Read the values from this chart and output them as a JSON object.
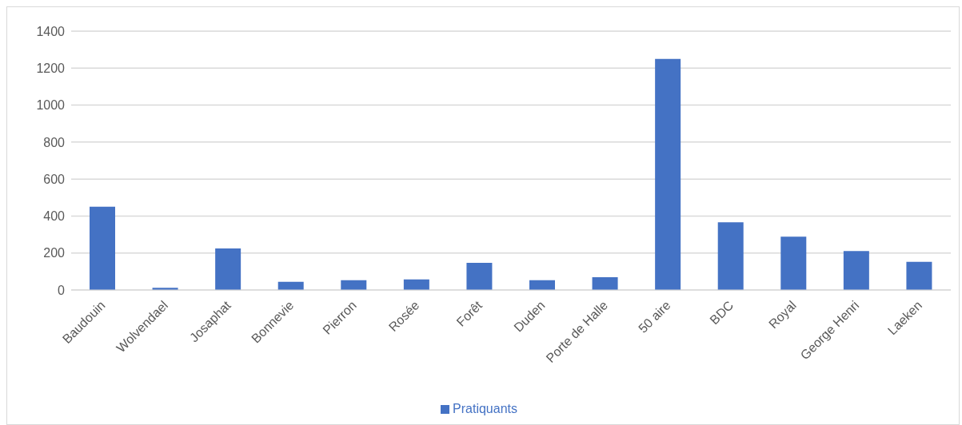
{
  "chart_data": {
    "type": "bar",
    "categories": [
      "Baudouin",
      "Wolvendael",
      "Josaphat",
      "Bonnevie",
      "Pierron",
      "Rosée",
      "Forêt",
      "Duden",
      "Porte de Halle",
      "50 aire",
      "BDC",
      "Royal",
      "George Henri",
      "Laeken"
    ],
    "series": [
      {
        "name": "Pratiquants",
        "color": "#4472c4",
        "values": [
          450,
          12,
          225,
          44,
          53,
          57,
          147,
          53,
          69,
          1250,
          366,
          288,
          211,
          152
        ]
      }
    ],
    "ylim": [
      0,
      1400
    ],
    "yticks": [
      0,
      200,
      400,
      600,
      800,
      1000,
      1200,
      1400
    ],
    "grid": "y",
    "legend": "bottom"
  }
}
